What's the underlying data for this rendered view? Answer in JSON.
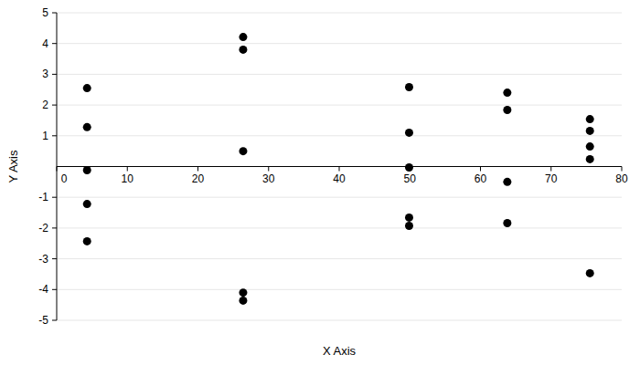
{
  "chart_data": {
    "type": "scatter",
    "x_label": "X Axis",
    "y_label": "Y Axis",
    "x": [
      4.3,
      4.3,
      4.3,
      4.3,
      4.3,
      26.4,
      26.4,
      26.4,
      26.4,
      26.4,
      49.9,
      49.9,
      49.9,
      49.9,
      49.9,
      63.8,
      63.8,
      63.8,
      63.8,
      75.5,
      75.5,
      75.5,
      75.5,
      75.5
    ],
    "values": [
      2.55,
      1.28,
      -0.12,
      -1.22,
      -2.43,
      4.21,
      3.8,
      0.5,
      -4.1,
      -4.36,
      2.58,
      1.1,
      -0.03,
      -1.66,
      -1.93,
      2.4,
      1.84,
      -0.5,
      -1.84,
      1.54,
      1.16,
      0.65,
      0.24,
      -3.47
    ],
    "color": "#000000",
    "marker": "circle",
    "xlim": [
      0,
      80
    ],
    "xticks": [
      0,
      10,
      20,
      30,
      40,
      50,
      60,
      70,
      80
    ],
    "ylim": [
      -5,
      5
    ],
    "yticks": [
      -5,
      -4,
      -3,
      -2,
      -1,
      1,
      2,
      3,
      4,
      5
    ],
    "grid": true
  }
}
